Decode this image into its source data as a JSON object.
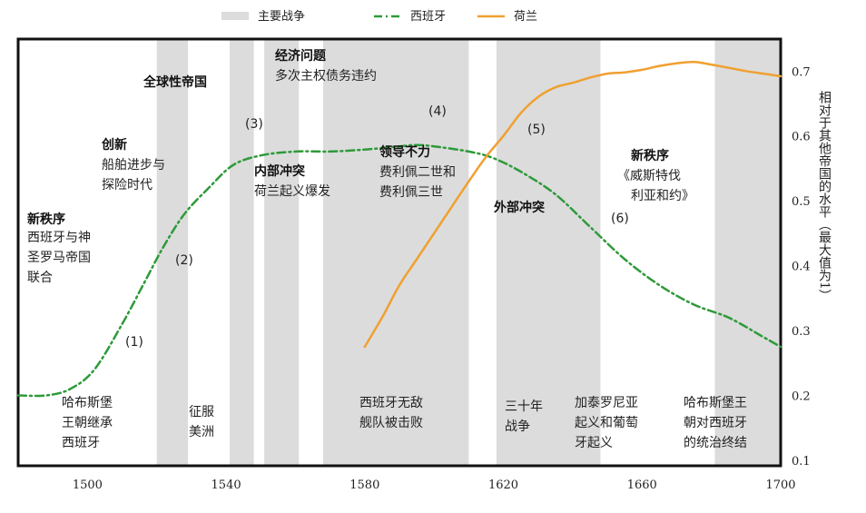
{
  "chart_data": {
    "type": "line",
    "xlim": [
      1480,
      1700
    ],
    "ylim": [
      0.1,
      0.72
    ],
    "x_ticks": [
      1500,
      1540,
      1580,
      1620,
      1660,
      1700
    ],
    "y_ticks": [
      0.1,
      0.2,
      0.3,
      0.4,
      0.5,
      0.6,
      0.7
    ],
    "ylabel": "相对于其他帝国的水平（最大值为1）",
    "legend": {
      "placement": "top",
      "war_label": "主要战争",
      "war_color": "#dcdcdc"
    },
    "war_periods": [
      [
        1520,
        1529
      ],
      [
        1541,
        1548
      ],
      [
        1551,
        1561
      ],
      [
        1568,
        1610
      ],
      [
        1618,
        1648
      ],
      [
        1681,
        1700
      ]
    ],
    "series": [
      {
        "name": "西班牙",
        "color": "#2e9a3a",
        "style": "dash-dot",
        "x": [
          1480,
          1488,
          1495,
          1502,
          1510,
          1517,
          1522,
          1528,
          1535,
          1542,
          1550,
          1560,
          1570,
          1580,
          1590,
          1595,
          1600,
          1610,
          1617,
          1625,
          1635,
          1645,
          1655,
          1665,
          1675,
          1685,
          1695,
          1700
        ],
        "values": [
          0.2,
          0.2,
          0.21,
          0.24,
          0.31,
          0.38,
          0.43,
          0.48,
          0.52,
          0.555,
          0.57,
          0.576,
          0.576,
          0.579,
          0.584,
          0.586,
          0.584,
          0.576,
          0.566,
          0.545,
          0.51,
          0.46,
          0.41,
          0.37,
          0.34,
          0.32,
          0.29,
          0.275
        ]
      },
      {
        "name": "荷兰",
        "color": "#f0a030",
        "style": "solid",
        "x": [
          1580,
          1585,
          1590,
          1595,
          1600,
          1605,
          1610,
          1615,
          1620,
          1625,
          1630,
          1635,
          1640,
          1645,
          1650,
          1655,
          1660,
          1665,
          1670,
          1675,
          1680,
          1685,
          1690,
          1695,
          1700
        ],
        "values": [
          0.275,
          0.32,
          0.37,
          0.41,
          0.45,
          0.49,
          0.53,
          0.568,
          0.6,
          0.635,
          0.66,
          0.675,
          0.682,
          0.69,
          0.696,
          0.698,
          0.702,
          0.708,
          0.712,
          0.714,
          0.71,
          0.705,
          0.7,
          0.696,
          0.692
        ]
      }
    ],
    "annotations": [
      {
        "title": "新秩序",
        "lines": [
          "西班牙与神",
          "圣罗马帝国",
          "联合"
        ]
      },
      {
        "title": "创新",
        "lines": [
          "船舶进步与",
          "探险时代"
        ]
      },
      {
        "title": "全球性帝国",
        "lines": []
      },
      {
        "title": "经济问题",
        "lines": [
          "多次主权债务违约"
        ]
      },
      {
        "title": "内部冲突",
        "lines": [
          "荷兰起义爆发"
        ]
      },
      {
        "title": "领导不力",
        "lines": [
          "费利佩二世和",
          "费利佩三世"
        ]
      },
      {
        "title": "外部冲突",
        "lines": []
      },
      {
        "title": "新秩序",
        "lines": [
          "《威斯特伐",
          "利亚和约》"
        ]
      }
    ],
    "stage_labels": [
      "(1)",
      "(2)",
      "(3)",
      "(4)",
      "(5)",
      "(6)"
    ],
    "events": [
      {
        "lines": [
          "哈布斯堡",
          "王朝继承",
          "西班牙"
        ]
      },
      {
        "lines": [
          "征服",
          "美洲"
        ]
      },
      {
        "lines": [
          "西班牙无敌",
          "舰队被击败"
        ]
      },
      {
        "lines": [
          "三十年",
          "战争"
        ]
      },
      {
        "lines": [
          "加泰罗尼亚",
          "起义和葡萄",
          "牙起义"
        ]
      },
      {
        "lines": [
          "哈布斯堡王",
          "朝对西班牙",
          "的统治终结"
        ]
      }
    ]
  }
}
